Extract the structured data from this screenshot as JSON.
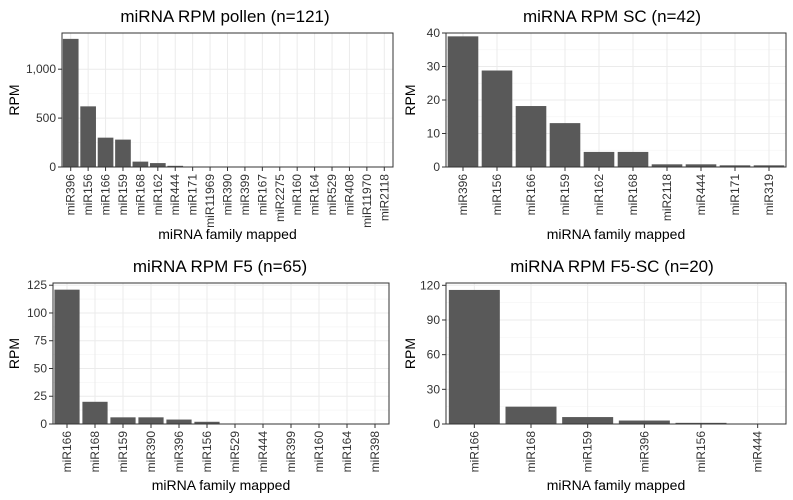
{
  "chart_data": [
    {
      "type": "bar",
      "title": "miRNA RPM pollen (n=121)",
      "xlabel": "miRNA family mapped",
      "ylabel": "RPM",
      "ylim": [
        0,
        1370
      ],
      "yticks": [
        0,
        500,
        1000
      ],
      "ytick_labels": [
        "0",
        "500",
        "1,000"
      ],
      "grid": true,
      "color": "#595959",
      "categories": [
        "miR396",
        "miR156",
        "miR166",
        "miR159",
        "miR168",
        "miR162",
        "miR444",
        "miR171",
        "miR11969",
        "miR390",
        "miR399",
        "miR167",
        "miR2275",
        "miR160",
        "miR164",
        "miR529",
        "miR408",
        "miR11970",
        "miR2118"
      ],
      "values": [
        1310,
        620,
        300,
        280,
        55,
        40,
        12,
        3,
        2,
        2,
        1,
        1,
        1,
        1,
        1,
        0.5,
        0.5,
        0.5,
        0.5
      ]
    },
    {
      "type": "bar",
      "title": "miRNA RPM SC (n=42)",
      "xlabel": "miRNA family mapped",
      "ylabel": "RPM",
      "ylim": [
        0,
        40
      ],
      "yticks": [
        0,
        10,
        20,
        30,
        40
      ],
      "ytick_labels": [
        "0",
        "10",
        "20",
        "30",
        "40"
      ],
      "grid": true,
      "color": "#595959",
      "categories": [
        "miR396",
        "miR156",
        "miR166",
        "miR159",
        "miR162",
        "miR168",
        "miR2118",
        "miR444",
        "miR171",
        "miR319"
      ],
      "values": [
        39,
        28.8,
        18.2,
        13.1,
        4.5,
        4.5,
        0.8,
        0.8,
        0.5,
        0.5
      ]
    },
    {
      "type": "bar",
      "title": "miRNA RPM F5 (n=65)",
      "xlabel": "miRNA family mapped",
      "ylabel": "RPM",
      "ylim": [
        0,
        127
      ],
      "yticks": [
        0,
        25,
        50,
        75,
        100,
        125
      ],
      "ytick_labels": [
        "0",
        "25",
        "50",
        "75",
        "100",
        "125"
      ],
      "grid": true,
      "color": "#595959",
      "categories": [
        "miR166",
        "miR168",
        "miR159",
        "miR390",
        "miR396",
        "miR156",
        "miR529",
        "miR444",
        "miR399",
        "miR160",
        "miR164",
        "miR398"
      ],
      "values": [
        121,
        20,
        6,
        6,
        4,
        2,
        0.2,
        0.2,
        0.2,
        0.2,
        0.2,
        0.2
      ]
    },
    {
      "type": "bar",
      "title": "miRNA RPM F5-SC (n=20)",
      "xlabel": "miRNA family mapped",
      "ylabel": "RPM",
      "ylim": [
        0,
        122
      ],
      "yticks": [
        0,
        30,
        60,
        90,
        120
      ],
      "ytick_labels": [
        "0",
        "30",
        "60",
        "90",
        "120"
      ],
      "grid": true,
      "color": "#595959",
      "categories": [
        "miR166",
        "miR168",
        "miR159",
        "miR396",
        "miR156",
        "miR444"
      ],
      "values": [
        116,
        15,
        6,
        3,
        1,
        0.3
      ]
    }
  ]
}
